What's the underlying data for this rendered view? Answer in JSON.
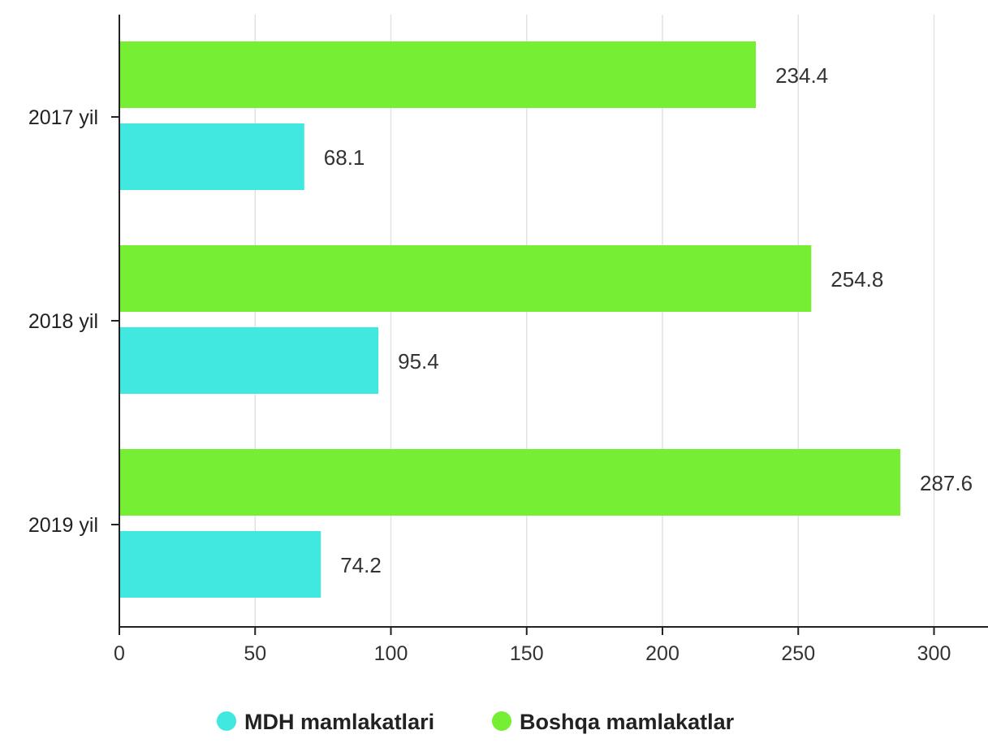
{
  "chart_data": {
    "type": "bar",
    "orientation": "horizontal",
    "categories": [
      "2017 yil",
      "2018 yil",
      "2019 yil"
    ],
    "series": [
      {
        "name": "Boshqa mamlakatlar",
        "color": "#76ee33",
        "values": [
          234.4,
          254.8,
          287.6
        ]
      },
      {
        "name": "MDH mamlakatlari",
        "color": "#40e8e0",
        "values": [
          68.1,
          95.4,
          74.2
        ]
      }
    ],
    "data_labels": {
      "Boshqa mamlakatlar": [
        "234.4",
        "254.8",
        "287.6"
      ],
      "MDH mamlakatlari": [
        "68.1",
        "95.4",
        "74.2"
      ]
    },
    "xlim": [
      0,
      320
    ],
    "x_ticks": [
      "0",
      "50",
      "100",
      "150",
      "200",
      "250",
      "300"
    ],
    "grid": true,
    "legend": {
      "placement": "bottom-center",
      "items": [
        "MDH mamlakatlari",
        "Boshqa mamlakatlar"
      ]
    }
  }
}
